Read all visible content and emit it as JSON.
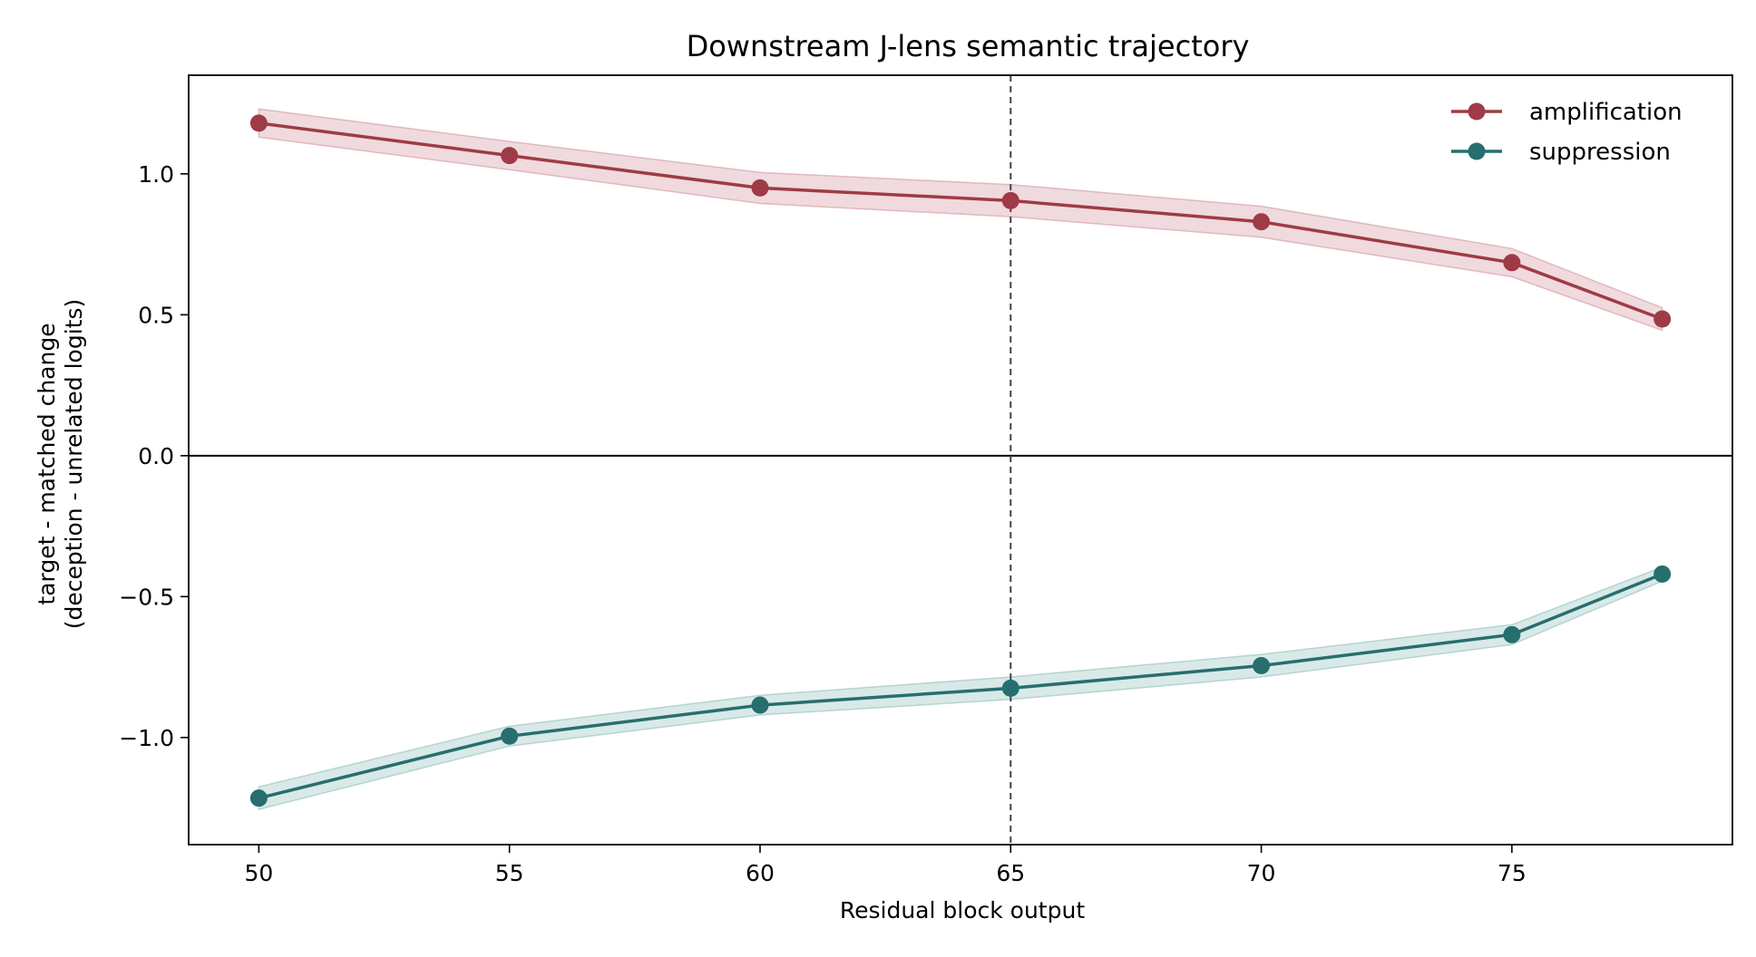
{
  "chart_data": {
    "type": "line",
    "title": "Downstream J-lens semantic trajectory",
    "xlabel": "Residual block output",
    "ylabel_line1": "target - matched change",
    "ylabel_line2": "(deception - unrelated logits)",
    "x": [
      50,
      55,
      60,
      65,
      70,
      75,
      78
    ],
    "xlim": [
      48.6,
      79.4
    ],
    "ylim": [
      -1.38,
      1.35
    ],
    "xticks": [
      50,
      55,
      60,
      65,
      70,
      75
    ],
    "xtick_labels": [
      "50",
      "55",
      "60",
      "65",
      "70",
      "75"
    ],
    "yticks": [
      -1.0,
      -0.5,
      0.0,
      0.5,
      1.0
    ],
    "ytick_labels": [
      "−1.0",
      "−0.5",
      "0.0",
      "0.5",
      "1.0"
    ],
    "zero_line": 0.0,
    "vline_x": 65,
    "grid": false,
    "legend_position": "top-right",
    "series": [
      {
        "name": "amplification",
        "color": "#9e3b47",
        "band_color": "#d9a3aa",
        "values": [
          1.18,
          1.065,
          0.95,
          0.905,
          0.83,
          0.685,
          0.485
        ],
        "lower": [
          1.13,
          1.015,
          0.895,
          0.848,
          0.775,
          0.635,
          0.445
        ],
        "upper": [
          1.23,
          1.115,
          1.005,
          0.962,
          0.885,
          0.735,
          0.525
        ]
      },
      {
        "name": "suppression",
        "color": "#276e6e",
        "band_color": "#9ec8c5",
        "values": [
          -1.215,
          -0.995,
          -0.885,
          -0.825,
          -0.745,
          -0.635,
          -0.42
        ],
        "lower": [
          -1.255,
          -1.03,
          -0.92,
          -0.865,
          -0.785,
          -0.67,
          -0.445
        ],
        "upper": [
          -1.175,
          -0.96,
          -0.85,
          -0.785,
          -0.705,
          -0.6,
          -0.395
        ]
      }
    ]
  }
}
